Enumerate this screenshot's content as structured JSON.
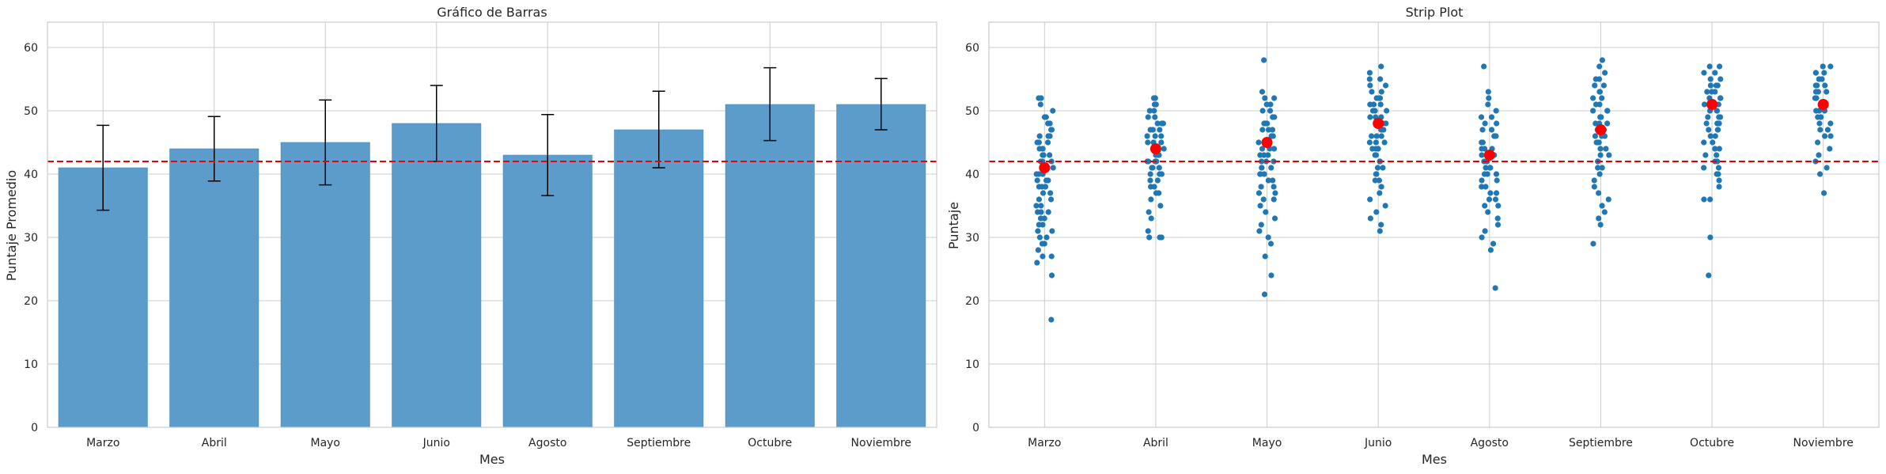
{
  "colors": {
    "bar": "#5b9cca",
    "bar_edge": "#4a8ab8",
    "point": "#1f77b4",
    "mean_marker": "#ff0000",
    "reference_line": "#e8000b",
    "grid": "#cccccc",
    "axes_edge": "#cccccc",
    "error_bar": "#000000"
  },
  "chart_data": [
    {
      "type": "bar",
      "title": "Gráfico de Barras",
      "xlabel": "Mes",
      "ylabel": "Puntaje Promedio",
      "ylim": [
        0,
        64
      ],
      "yticks": [
        0,
        10,
        20,
        30,
        40,
        50,
        60
      ],
      "grid": true,
      "categories": [
        "Marzo",
        "Abril",
        "Mayo",
        "Junio",
        "Agosto",
        "Septiembre",
        "Octubre",
        "Noviembre"
      ],
      "values": [
        41,
        44,
        45,
        48,
        43,
        47,
        51,
        51
      ],
      "error_low": [
        34.3,
        38.9,
        38.3,
        42,
        36.6,
        41,
        45.3,
        47
      ],
      "error_high": [
        47.7,
        49.1,
        51.7,
        54,
        49.4,
        53.1,
        56.8,
        55.1
      ],
      "reference_line": 42
    },
    {
      "type": "scatter",
      "title": "Strip Plot",
      "xlabel": "Mes",
      "ylabel": "Puntaje",
      "ylim": [
        0,
        64
      ],
      "yticks": [
        0,
        10,
        20,
        30,
        40,
        50,
        60
      ],
      "grid": true,
      "categories": [
        "Marzo",
        "Abril",
        "Mayo",
        "Junio",
        "Agosto",
        "Septiembre",
        "Octubre",
        "Noviembre"
      ],
      "means": [
        41,
        44,
        45,
        48,
        43,
        47,
        51,
        51
      ],
      "reference_line": 42,
      "points": [
        [
          17,
          24,
          26,
          27,
          27,
          28,
          29,
          29,
          30,
          30,
          31,
          31,
          32,
          32,
          33,
          33,
          34,
          34,
          34,
          35,
          35,
          36,
          36,
          37,
          37,
          38,
          38,
          38,
          39,
          39,
          39,
          40,
          40,
          40,
          41,
          41,
          41,
          41,
          42,
          42,
          42,
          43,
          43,
          43,
          44,
          44,
          44,
          45,
          45,
          45,
          46,
          46,
          46,
          47,
          47,
          48,
          48,
          49,
          49,
          50,
          51,
          52,
          52
        ],
        [
          30,
          30,
          30,
          31,
          33,
          34,
          35,
          36,
          37,
          37,
          38,
          38,
          39,
          39,
          40,
          40,
          40,
          41,
          41,
          41,
          42,
          42,
          42,
          42,
          43,
          43,
          43,
          44,
          44,
          44,
          45,
          45,
          45,
          46,
          46,
          46,
          47,
          47,
          47,
          48,
          48,
          48,
          49,
          49,
          50,
          50,
          51,
          51,
          52,
          52
        ],
        [
          21,
          24,
          27,
          29,
          30,
          31,
          32,
          33,
          34,
          35,
          36,
          36,
          37,
          37,
          38,
          38,
          39,
          39,
          40,
          40,
          40,
          41,
          41,
          41,
          42,
          42,
          42,
          43,
          43,
          43,
          44,
          44,
          44,
          45,
          45,
          45,
          46,
          46,
          46,
          47,
          47,
          47,
          48,
          48,
          48,
          49,
          49,
          50,
          50,
          51,
          51,
          52,
          52,
          53,
          58
        ],
        [
          31,
          32,
          33,
          34,
          35,
          36,
          37,
          38,
          39,
          39,
          40,
          40,
          41,
          41,
          42,
          42,
          43,
          43,
          44,
          44,
          44,
          45,
          45,
          45,
          46,
          46,
          46,
          47,
          47,
          47,
          48,
          48,
          48,
          49,
          49,
          49,
          50,
          50,
          50,
          51,
          51,
          51,
          52,
          52,
          52,
          53,
          53,
          54,
          54,
          55,
          55,
          56,
          57
        ],
        [
          22,
          28,
          29,
          30,
          31,
          32,
          33,
          34,
          35,
          35,
          36,
          36,
          37,
          37,
          38,
          38,
          39,
          39,
          40,
          40,
          40,
          41,
          41,
          41,
          42,
          42,
          42,
          43,
          43,
          43,
          44,
          44,
          44,
          45,
          45,
          46,
          46,
          47,
          47,
          48,
          48,
          49,
          49,
          50,
          51,
          52,
          53,
          57
        ],
        [
          29,
          32,
          33,
          34,
          35,
          36,
          37,
          38,
          39,
          40,
          41,
          41,
          42,
          42,
          43,
          43,
          44,
          44,
          45,
          45,
          45,
          46,
          46,
          46,
          47,
          47,
          47,
          48,
          48,
          48,
          49,
          49,
          49,
          50,
          50,
          50,
          51,
          51,
          52,
          52,
          53,
          53,
          54,
          54,
          55,
          55,
          56,
          57,
          58
        ],
        [
          24,
          30,
          36,
          36,
          38,
          39,
          40,
          40,
          41,
          41,
          42,
          42,
          43,
          43,
          44,
          44,
          45,
          45,
          46,
          46,
          47,
          47,
          47,
          48,
          48,
          48,
          49,
          49,
          49,
          50,
          50,
          50,
          51,
          51,
          51,
          52,
          52,
          52,
          53,
          53,
          53,
          54,
          54,
          54,
          55,
          55,
          56,
          56,
          57,
          57
        ],
        [
          37,
          40,
          41,
          42,
          43,
          44,
          45,
          46,
          46,
          47,
          47,
          48,
          48,
          49,
          49,
          49,
          50,
          50,
          50,
          51,
          51,
          51,
          52,
          52,
          52,
          53,
          53,
          53,
          54,
          54,
          54,
          55,
          55,
          55,
          56,
          56,
          56,
          57,
          57
        ]
      ]
    }
  ]
}
